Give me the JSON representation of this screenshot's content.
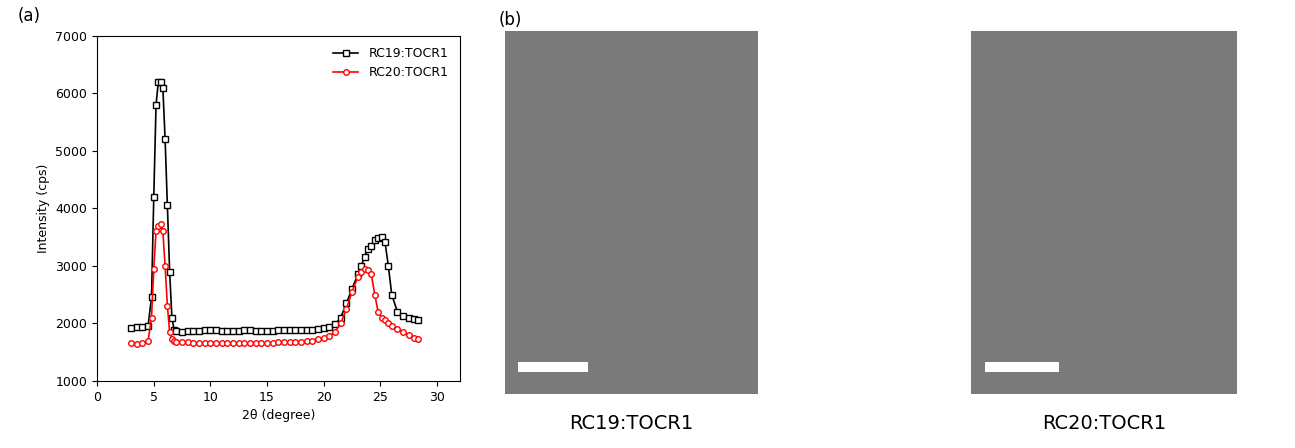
{
  "chart_data": {
    "type": "line",
    "title": "(a)",
    "x_label": "2θ (degree)",
    "y_label": "Intensity (cps)",
    "x": [
      3,
      3.5,
      4,
      4.5,
      4.8,
      5.0,
      5.2,
      5.4,
      5.6,
      5.8,
      6.0,
      6.2,
      6.4,
      6.6,
      6.8,
      7.0,
      7.5,
      8,
      8.5,
      9,
      9.5,
      10,
      10.5,
      11,
      11.5,
      12,
      12.5,
      13,
      13.5,
      14,
      14.5,
      15,
      15.5,
      16,
      16.5,
      17,
      17.5,
      18,
      18.5,
      19,
      19.5,
      20,
      20.5,
      21,
      21.5,
      22,
      22.5,
      23,
      23.3,
      23.6,
      23.9,
      24.2,
      24.5,
      24.8,
      25.1,
      25.4,
      25.7,
      26,
      26.5,
      27,
      27.5,
      28,
      28.3
    ],
    "series": [
      {
        "name": "RC19:TOCR1",
        "color": "#000000",
        "marker": "square",
        "values": [
          1920,
          1930,
          1940,
          1960,
          2450,
          4200,
          5800,
          6200,
          6200,
          6100,
          5200,
          4050,
          2900,
          2100,
          1880,
          1860,
          1850,
          1860,
          1870,
          1870,
          1880,
          1880,
          1880,
          1870,
          1870,
          1860,
          1870,
          1880,
          1880,
          1870,
          1860,
          1860,
          1870,
          1880,
          1880,
          1880,
          1890,
          1880,
          1880,
          1890,
          1900,
          1910,
          1930,
          1980,
          2100,
          2350,
          2600,
          2850,
          3000,
          3150,
          3300,
          3350,
          3450,
          3480,
          3500,
          3420,
          3000,
          2500,
          2200,
          2130,
          2100,
          2080,
          2050
        ]
      },
      {
        "name": "RC20:TOCR1",
        "color": "#ff0000",
        "marker": "circle",
        "values": [
          1650,
          1640,
          1650,
          1700,
          2100,
          2950,
          3600,
          3700,
          3720,
          3600,
          3000,
          2300,
          1850,
          1720,
          1700,
          1680,
          1670,
          1670,
          1660,
          1660,
          1660,
          1660,
          1660,
          1650,
          1650,
          1650,
          1650,
          1650,
          1650,
          1660,
          1660,
          1660,
          1660,
          1670,
          1670,
          1670,
          1680,
          1680,
          1690,
          1700,
          1720,
          1740,
          1780,
          1850,
          2000,
          2250,
          2550,
          2800,
          2900,
          2950,
          2930,
          2850,
          2500,
          2200,
          2100,
          2050,
          2000,
          1950,
          1900,
          1850,
          1800,
          1750,
          1720
        ]
      }
    ],
    "xlim": [
      0,
      32
    ],
    "xticks": [
      0,
      5,
      10,
      15,
      20,
      25,
      30
    ],
    "ylim": [
      1000,
      7000
    ],
    "yticks": [
      1000,
      2000,
      3000,
      4000,
      5000,
      6000,
      7000
    ],
    "grid": false,
    "legend": "upper right"
  },
  "images": {
    "title": "(b)",
    "captions": [
      "RC19:TOCR1",
      "RC20:TOCR1"
    ]
  }
}
